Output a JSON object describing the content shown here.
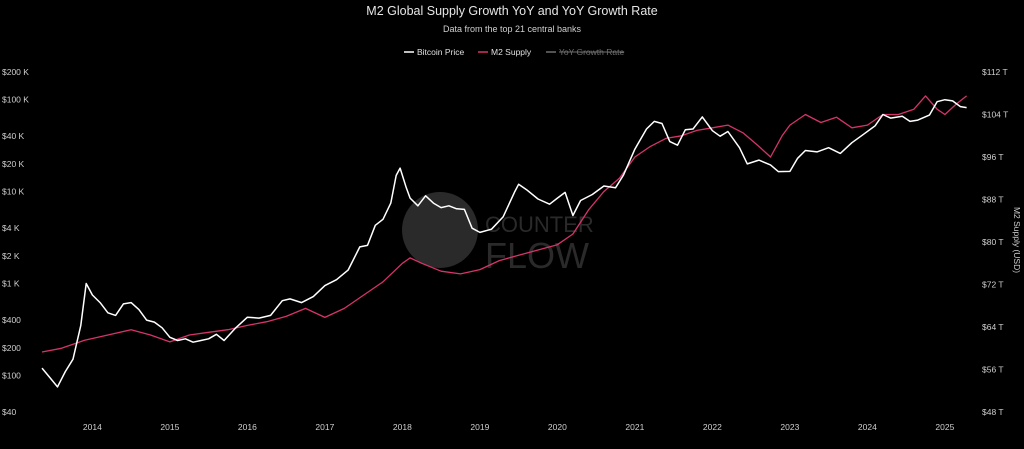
{
  "chart_data": {
    "type": "line",
    "title": "M2 Global Supply Growth YoY and YoY Growth Rate",
    "subtitle": "Data from the top 21 central banks",
    "legend": {
      "placement": "top-center",
      "entries": [
        {
          "label": "Bitcoin Price",
          "color": "#ffffff",
          "active": true
        },
        {
          "label": "M2 Supply",
          "color": "#d6336c",
          "active": true
        },
        {
          "label": "YoY Growth Rate",
          "color": "#6e6e6e",
          "active": false
        }
      ]
    },
    "watermark": {
      "line1": "COUNTER",
      "line2": "FLOW"
    },
    "x_axis": {
      "ticks": [
        "2014",
        "2015",
        "2016",
        "2017",
        "2018",
        "2019",
        "2020",
        "2021",
        "2022",
        "2023",
        "2024",
        "2025"
      ],
      "range": [
        2013.35,
        2025.35
      ]
    },
    "y_left": {
      "scale": "log",
      "range": [
        40,
        200000
      ],
      "ticks": [
        {
          "v": 40,
          "label": "$40"
        },
        {
          "v": 100,
          "label": "$100"
        },
        {
          "v": 200,
          "label": "$200"
        },
        {
          "v": 400,
          "label": "$400"
        },
        {
          "v": 1000,
          "label": "$1 K"
        },
        {
          "v": 2000,
          "label": "$2 K"
        },
        {
          "v": 4000,
          "label": "$4 K"
        },
        {
          "v": 10000,
          "label": "$10 K"
        },
        {
          "v": 20000,
          "label": "$20 K"
        },
        {
          "v": 40000,
          "label": "$40 K"
        },
        {
          "v": 100000,
          "label": "$100 K"
        },
        {
          "v": 200000,
          "label": "$200 K"
        }
      ]
    },
    "y_right": {
      "title": "M2 Supply (USD)",
      "range": [
        48,
        112
      ],
      "ticks": [
        {
          "v": 48,
          "label": "$48 T"
        },
        {
          "v": 56,
          "label": "$56 T"
        },
        {
          "v": 64,
          "label": "$64 T"
        },
        {
          "v": 72,
          "label": "$72 T"
        },
        {
          "v": 80,
          "label": "$80 T"
        },
        {
          "v": 88,
          "label": "$88 T"
        },
        {
          "v": 96,
          "label": "$96 T"
        },
        {
          "v": 104,
          "label": "$104 T"
        },
        {
          "v": 112,
          "label": "$112 T"
        }
      ]
    },
    "series": [
      {
        "name": "Bitcoin Price",
        "color": "#ffffff",
        "axis": "left",
        "points": [
          [
            2013.35,
            120
          ],
          [
            2013.45,
            95
          ],
          [
            2013.55,
            75
          ],
          [
            2013.65,
            110
          ],
          [
            2013.75,
            150
          ],
          [
            2013.85,
            350
          ],
          [
            2013.92,
            1000
          ],
          [
            2014.0,
            750
          ],
          [
            2014.1,
            620
          ],
          [
            2014.2,
            480
          ],
          [
            2014.3,
            450
          ],
          [
            2014.4,
            600
          ],
          [
            2014.5,
            620
          ],
          [
            2014.6,
            520
          ],
          [
            2014.7,
            400
          ],
          [
            2014.8,
            380
          ],
          [
            2014.9,
            330
          ],
          [
            2015.0,
            260
          ],
          [
            2015.1,
            240
          ],
          [
            2015.2,
            250
          ],
          [
            2015.3,
            230
          ],
          [
            2015.4,
            240
          ],
          [
            2015.5,
            250
          ],
          [
            2015.6,
            280
          ],
          [
            2015.7,
            240
          ],
          [
            2015.85,
            330
          ],
          [
            2016.0,
            430
          ],
          [
            2016.15,
            420
          ],
          [
            2016.3,
            450
          ],
          [
            2016.45,
            650
          ],
          [
            2016.55,
            680
          ],
          [
            2016.7,
            620
          ],
          [
            2016.85,
            720
          ],
          [
            2017.0,
            950
          ],
          [
            2017.15,
            1100
          ],
          [
            2017.3,
            1400
          ],
          [
            2017.45,
            2500
          ],
          [
            2017.55,
            2600
          ],
          [
            2017.65,
            4300
          ],
          [
            2017.75,
            5000
          ],
          [
            2017.85,
            7500
          ],
          [
            2017.92,
            15000
          ],
          [
            2017.97,
            18000
          ],
          [
            2018.05,
            11000
          ],
          [
            2018.1,
            8500
          ],
          [
            2018.2,
            7000
          ],
          [
            2018.3,
            9000
          ],
          [
            2018.4,
            7500
          ],
          [
            2018.5,
            6700
          ],
          [
            2018.6,
            7000
          ],
          [
            2018.7,
            6500
          ],
          [
            2018.8,
            6400
          ],
          [
            2018.9,
            4000
          ],
          [
            2019.0,
            3600
          ],
          [
            2019.15,
            3900
          ],
          [
            2019.3,
            5300
          ],
          [
            2019.45,
            10000
          ],
          [
            2019.5,
            12000
          ],
          [
            2019.6,
            10500
          ],
          [
            2019.75,
            8300
          ],
          [
            2019.9,
            7300
          ],
          [
            2020.0,
            8500
          ],
          [
            2020.1,
            9800
          ],
          [
            2020.2,
            5500
          ],
          [
            2020.3,
            8000
          ],
          [
            2020.45,
            9300
          ],
          [
            2020.6,
            11500
          ],
          [
            2020.75,
            11000
          ],
          [
            2020.85,
            15000
          ],
          [
            2021.0,
            29000
          ],
          [
            2021.15,
            48000
          ],
          [
            2021.25,
            58000
          ],
          [
            2021.35,
            55000
          ],
          [
            2021.45,
            35000
          ],
          [
            2021.55,
            32000
          ],
          [
            2021.65,
            47000
          ],
          [
            2021.75,
            48000
          ],
          [
            2021.87,
            65000
          ],
          [
            2022.0,
            46000
          ],
          [
            2022.1,
            40000
          ],
          [
            2022.2,
            45000
          ],
          [
            2022.35,
            30000
          ],
          [
            2022.45,
            20000
          ],
          [
            2022.6,
            22000
          ],
          [
            2022.75,
            19500
          ],
          [
            2022.85,
            16500
          ],
          [
            2023.0,
            16600
          ],
          [
            2023.1,
            23000
          ],
          [
            2023.2,
            28000
          ],
          [
            2023.35,
            27000
          ],
          [
            2023.5,
            30000
          ],
          [
            2023.65,
            26000
          ],
          [
            2023.8,
            34000
          ],
          [
            2023.95,
            42000
          ],
          [
            2024.1,
            52000
          ],
          [
            2024.2,
            69000
          ],
          [
            2024.3,
            63000
          ],
          [
            2024.45,
            66000
          ],
          [
            2024.55,
            58000
          ],
          [
            2024.65,
            60000
          ],
          [
            2024.8,
            68000
          ],
          [
            2024.9,
            95000
          ],
          [
            2025.0,
            100000
          ],
          [
            2025.1,
            97000
          ],
          [
            2025.2,
            84000
          ],
          [
            2025.28,
            82000
          ]
        ]
      },
      {
        "name": "M2 Supply",
        "color": "#d6336c",
        "axis": "right",
        "points": [
          [
            2013.35,
            59.3
          ],
          [
            2013.6,
            60.0
          ],
          [
            2013.9,
            61.5
          ],
          [
            2014.2,
            62.5
          ],
          [
            2014.5,
            63.5
          ],
          [
            2014.75,
            62.5
          ],
          [
            2015.0,
            61.2
          ],
          [
            2015.25,
            62.5
          ],
          [
            2015.5,
            63.0
          ],
          [
            2015.75,
            63.5
          ],
          [
            2016.0,
            64.3
          ],
          [
            2016.25,
            65.0
          ],
          [
            2016.5,
            66.0
          ],
          [
            2016.75,
            67.5
          ],
          [
            2017.0,
            65.8
          ],
          [
            2017.25,
            67.5
          ],
          [
            2017.5,
            70.0
          ],
          [
            2017.75,
            72.5
          ],
          [
            2018.0,
            76.0
          ],
          [
            2018.1,
            77.0
          ],
          [
            2018.25,
            76.0
          ],
          [
            2018.5,
            74.5
          ],
          [
            2018.75,
            74.0
          ],
          [
            2019.0,
            74.8
          ],
          [
            2019.25,
            76.5
          ],
          [
            2019.5,
            77.5
          ],
          [
            2019.75,
            78.5
          ],
          [
            2020.0,
            79.5
          ],
          [
            2020.2,
            81.5
          ],
          [
            2020.4,
            86.0
          ],
          [
            2020.6,
            89.5
          ],
          [
            2020.8,
            92.0
          ],
          [
            2021.0,
            96.0
          ],
          [
            2021.2,
            98.0
          ],
          [
            2021.4,
            99.5
          ],
          [
            2021.6,
            100.0
          ],
          [
            2021.8,
            101.0
          ],
          [
            2022.0,
            101.5
          ],
          [
            2022.2,
            102.0
          ],
          [
            2022.4,
            100.5
          ],
          [
            2022.6,
            98.0
          ],
          [
            2022.75,
            96.0
          ],
          [
            2022.9,
            100.0
          ],
          [
            2023.0,
            102.0
          ],
          [
            2023.2,
            104.0
          ],
          [
            2023.4,
            102.5
          ],
          [
            2023.6,
            103.5
          ],
          [
            2023.8,
            101.5
          ],
          [
            2024.0,
            102.0
          ],
          [
            2024.2,
            104.0
          ],
          [
            2024.4,
            104.0
          ],
          [
            2024.6,
            105.0
          ],
          [
            2024.75,
            107.5
          ],
          [
            2024.9,
            105.0
          ],
          [
            2025.0,
            104.0
          ],
          [
            2025.15,
            106.0
          ],
          [
            2025.28,
            107.5
          ]
        ]
      }
    ]
  }
}
